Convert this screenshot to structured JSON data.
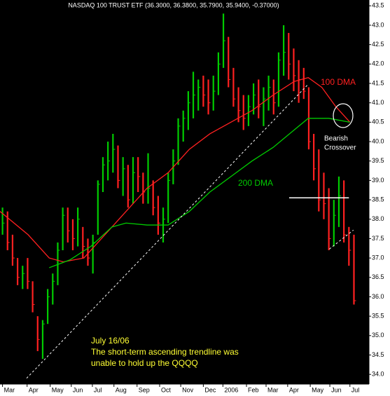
{
  "chart_data": {
    "type": "ohlc",
    "title": "NASDAQ 100 TRUST ETF (36.3000, 36.3800, 35.7900, 35.9400, -0.37000)",
    "up_color": "#00cc00",
    "down_color": "#ff2020",
    "high": [
      38.3,
      38.2,
      37.6,
      37.0,
      36.8,
      37.0,
      36.4,
      35.5,
      35.4,
      36.2,
      36.6,
      37.4,
      38.3,
      38.3,
      38.0,
      38.3,
      37.8,
      37.5,
      37.6,
      39.0,
      39.6,
      40.0,
      40.2,
      39.9,
      39.6,
      39.4,
      39.6,
      39.6,
      39.2,
      39.7,
      39.0,
      38.6,
      38.3,
      39.2,
      39.8,
      40.6,
      40.8,
      41.3,
      41.8,
      41.6,
      41.7,
      41.6,
      41.7,
      42.3,
      43.3,
      42.7,
      41.9,
      41.4,
      41.2,
      41.2,
      41.5,
      41.6,
      41.4,
      41.7,
      41.6,
      42.3,
      43.0,
      42.8,
      42.4,
      42.1,
      41.9,
      41.4,
      40.2,
      39.8,
      39.2,
      38.8,
      38.5,
      39.1,
      39.0,
      37.8,
      37.6
    ],
    "low": [
      37.6,
      37.2,
      36.8,
      36.3,
      36.2,
      36.2,
      35.6,
      34.6,
      34.4,
      35.3,
      35.8,
      36.3,
      37.2,
      37.4,
      37.2,
      37.3,
      37.0,
      36.8,
      36.6,
      37.6,
      38.7,
      39.0,
      39.2,
      38.8,
      38.6,
      38.3,
      38.4,
      38.7,
      38.4,
      38.4,
      38.1,
      37.6,
      37.4,
      37.9,
      38.9,
      39.4,
      40.0,
      40.3,
      40.6,
      40.8,
      40.9,
      40.7,
      40.8,
      41.2,
      41.9,
      41.4,
      40.9,
      40.5,
      40.3,
      40.4,
      40.7,
      40.6,
      40.4,
      40.8,
      40.7,
      40.9,
      41.7,
      41.6,
      41.3,
      41.0,
      41.1,
      39.8,
      39.0,
      38.2,
      38.0,
      37.2,
      37.3,
      37.8,
      37.4,
      36.8,
      35.8
    ],
    "close": [
      37.9,
      37.4,
      37.0,
      36.5,
      36.6,
      36.4,
      35.8,
      34.9,
      35.3,
      36.0,
      36.4,
      37.2,
      38.1,
      37.7,
      37.5,
      38.0,
      37.3,
      37.0,
      37.4,
      38.9,
      39.4,
      39.5,
      39.8,
      39.0,
      39.3,
      38.5,
      39.2,
      39.1,
      38.7,
      38.8,
      38.3,
      37.9,
      38.0,
      39.0,
      39.5,
      40.4,
      40.6,
      41.0,
      41.2,
      41.4,
      41.2,
      41.0,
      41.3,
      42.0,
      42.6,
      41.6,
      41.1,
      40.8,
      40.6,
      40.9,
      41.2,
      40.9,
      41.1,
      41.4,
      41.0,
      42.1,
      42.3,
      42.0,
      41.7,
      41.6,
      41.3,
      40.0,
      39.3,
      38.5,
      38.4,
      37.5,
      38.1,
      38.6,
      37.6,
      37.2,
      35.9
    ],
    "series": [
      {
        "name": "100 DMA",
        "color": "#ff2020",
        "x": [
          -0.5,
          5.1,
          9.3,
          12.1,
          16.2,
          20.4,
          24.6,
          28.8,
          33,
          37.2,
          41.3,
          45.5,
          49.7,
          53.9,
          58.1,
          60.9,
          63.6,
          66.4,
          69.2
        ],
        "values": [
          38.2,
          37.6,
          37.0,
          36.9,
          37.0,
          37.6,
          38.2,
          38.8,
          39.2,
          39.8,
          40.2,
          40.5,
          40.8,
          41.2,
          41.55,
          41.65,
          41.4,
          40.9,
          40.5
        ]
      },
      {
        "name": "200 DMA",
        "color": "#00cc00",
        "x": [
          9.3,
          13.4,
          17.6,
          21.8,
          24.6,
          28.8,
          33,
          37.2,
          41.3,
          45.5,
          49.7,
          53.9,
          58.1,
          60.9,
          65,
          69.2
        ],
        "values": [
          36.75,
          36.95,
          37.3,
          37.8,
          37.9,
          37.85,
          37.85,
          38.2,
          38.7,
          39.1,
          39.5,
          39.85,
          40.3,
          40.6,
          40.6,
          40.5
        ]
      }
    ],
    "trendlines": [
      {
        "x": [
          4.8,
          60.9
        ],
        "values": [
          33.9,
          41.48
        ]
      },
      {
        "x": [
          65.1,
          69.9
        ],
        "values": [
          37.23,
          37.72
        ]
      },
      {
        "x": [
          57.1,
          69.0
        ],
        "values": [
          38.55,
          38.55
        ],
        "solid": true
      }
    ],
    "xlim": [
      -0.5,
      73
    ],
    "xticks": [
      {
        "value": 0,
        "label": "Mar"
      },
      {
        "value": 4.9,
        "label": "Apr"
      },
      {
        "value": 9.5,
        "label": "May"
      },
      {
        "value": 13.7,
        "label": "Jun"
      },
      {
        "value": 17.9,
        "label": "Jul"
      },
      {
        "value": 22.2,
        "label": "Aug"
      },
      {
        "value": 26.8,
        "label": "Sep"
      },
      {
        "value": 31.3,
        "label": "Oct"
      },
      {
        "value": 35.5,
        "label": "Nov"
      },
      {
        "value": 40,
        "label": "Dec"
      },
      {
        "value": 43.9,
        "label": "2006"
      },
      {
        "value": 48.6,
        "label": "Feb"
      },
      {
        "value": 52.5,
        "label": "Mar"
      },
      {
        "value": 56.8,
        "label": "Apr"
      },
      {
        "value": 61.3,
        "label": "May"
      },
      {
        "value": 65.2,
        "label": "Jun"
      },
      {
        "value": 69.2,
        "label": "Jul"
      }
    ],
    "ylim": [
      33.75,
      43.65
    ],
    "yticks": [
      {
        "value": 34,
        "label": "34.0"
      },
      {
        "value": 34.5,
        "label": "34.5"
      },
      {
        "value": 35,
        "label": "35.0"
      },
      {
        "value": 35.5,
        "label": "35.5"
      },
      {
        "value": 36,
        "label": "36.0"
      },
      {
        "value": 36.5,
        "label": "36.5"
      },
      {
        "value": 37,
        "label": "37.0"
      },
      {
        "value": 37.5,
        "label": "37.5"
      },
      {
        "value": 38,
        "label": "38.0"
      },
      {
        "value": 38.5,
        "label": "38.5"
      },
      {
        "value": 39,
        "label": "39.0"
      },
      {
        "value": 39.5,
        "label": "39.5"
      },
      {
        "value": 40,
        "label": "40.0"
      },
      {
        "value": 40.5,
        "label": "40.5"
      },
      {
        "value": 41,
        "label": "41.0"
      },
      {
        "value": 41.5,
        "label": "41.5"
      },
      {
        "value": 42,
        "label": "42.0"
      },
      {
        "value": 42.5,
        "label": "42.5"
      },
      {
        "value": 43,
        "label": "43.0"
      },
      {
        "value": 43.5,
        "label": "43.5"
      }
    ],
    "annotations": {
      "label_100": "100 DMA",
      "label_200": "200 DMA",
      "crossover_1": "Bearish",
      "crossover_2": "Crossover",
      "note_1": "July 16/06",
      "note_2": "The short-term ascending trendline was",
      "note_3": "unable to hold up the QQQQ"
    }
  }
}
